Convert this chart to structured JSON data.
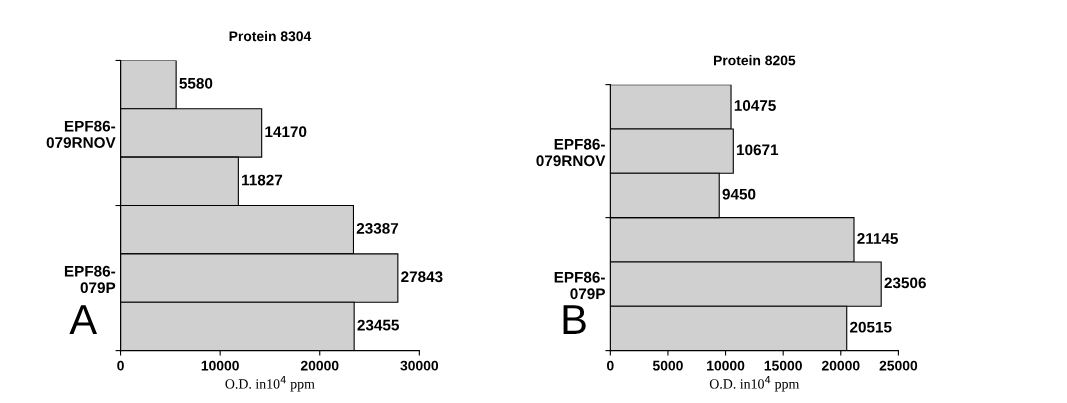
{
  "chart_data": [
    {
      "type": "bar",
      "orientation": "horizontal",
      "title": "Protein 8304",
      "xlabel": "O.D. in10$^{4}$ ppm",
      "categories": [
        "EPF86-\n079RNOV",
        "EPF86-\n079P"
      ],
      "series": [
        {
          "color": "#d0d0d0",
          "values": [
            5580,
            23387
          ]
        },
        {
          "color": "#d0d0d0",
          "values": [
            14170,
            27843
          ]
        },
        {
          "color": "#d0d0d0",
          "values": [
            11827,
            23455
          ]
        }
      ],
      "xlim": [
        0,
        30000
      ],
      "xticks": [
        0,
        10000,
        20000,
        30000
      ],
      "data_labels": true,
      "grid": false,
      "legend": false,
      "annotations": [
        "A"
      ]
    },
    {
      "type": "bar",
      "orientation": "horizontal",
      "title": "Protein 8205",
      "xlabel": "O.D. in10$^{4}$ ppm",
      "categories": [
        "EPF86-\n079RNOV",
        "EPF86-\n079P"
      ],
      "series": [
        {
          "color": "#d0d0d0",
          "values": [
            10475,
            21145
          ]
        },
        {
          "color": "#d0d0d0",
          "values": [
            10671,
            23506
          ]
        },
        {
          "color": "#d0d0d0",
          "values": [
            9450,
            20515
          ]
        }
      ],
      "xlim": [
        0,
        25000
      ],
      "xticks": [
        0,
        5000,
        10000,
        15000,
        20000,
        25000
      ],
      "data_labels": true,
      "grid": false,
      "legend": false,
      "annotations": [
        "B"
      ]
    }
  ]
}
